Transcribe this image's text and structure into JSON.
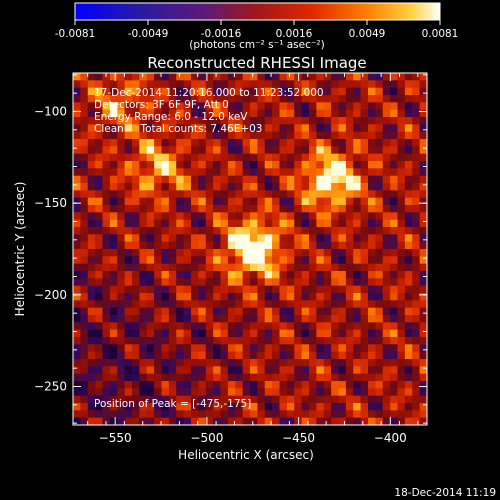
{
  "chart_data": {
    "type": "heatmap",
    "title": "Reconstructed RHESSI Image",
    "xlabel": "Heliocentric X (arcsec)",
    "ylabel": "Heliocentric Y (arcsec)",
    "xlim": [
      -573,
      -380
    ],
    "ylim": [
      -271,
      -79
    ],
    "xticks": [
      -550,
      -500,
      -450,
      -400
    ],
    "yticks": [
      -100,
      -150,
      -200,
      -250
    ],
    "colorbar": {
      "range": [
        -0.0081,
        0.0081
      ],
      "ticks": [
        "-0.0081",
        "-0.0049",
        "-0.0016",
        "0.0016",
        "0.0049",
        "0.0081"
      ],
      "unit_label": "(photons cm⁻² s⁻¹ asec⁻²)"
    },
    "annotations": [
      "17-Dec-2014 11:20:16.000 to 11:23:52.000",
      "Detectors: 3F 6F 9F, Att 0",
      "Energy Range: 6.0 - 12.0 keV",
      "Clean     Total counts: 7.46E+03"
    ],
    "peak_label": "Position of Peak = [-475,-175]",
    "sources": [
      {
        "x": -475,
        "y": -175,
        "amplitude": 1.0
      },
      {
        "x": -432,
        "y": -137,
        "amplitude": 0.85
      },
      {
        "x": -527,
        "y": -131,
        "amplitude": 0.55
      },
      {
        "x": -547,
        "y": -95,
        "amplitude": 0.4
      }
    ],
    "background": {
      "level": 0.42,
      "ripple": 0.28
    }
  },
  "footer_timestamp": "18-Dec-2014 11:19"
}
